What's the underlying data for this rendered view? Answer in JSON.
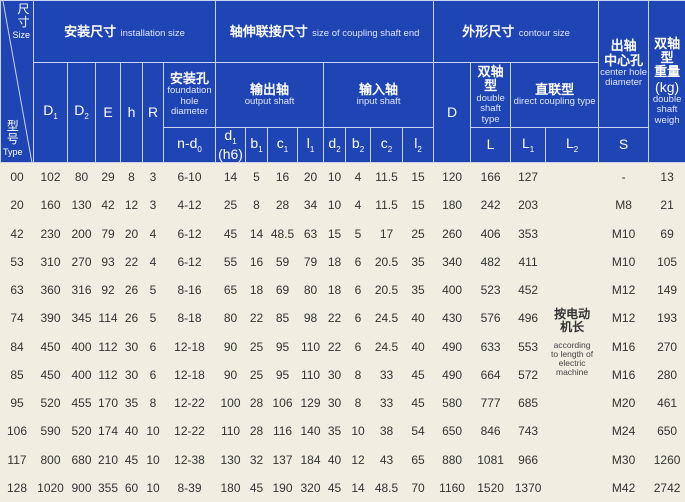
{
  "colors": {
    "header_bg": "#1f45b5",
    "body_bg": "#efeee0",
    "text": "#333333"
  },
  "corner": {
    "size_cn": "尺寸",
    "size_en": "Size",
    "type_cn": "型号",
    "type_en": "Type"
  },
  "groups": {
    "installation": {
      "cn": "安装尺寸",
      "en": "installation size"
    },
    "coupling": {
      "cn": "轴伸联接尺寸",
      "en": "size of coupling shaft end"
    },
    "contour": {
      "cn": "外形尺寸",
      "en": "contour size"
    },
    "center_hole": {
      "cn1": "出轴",
      "cn2": "中心孔",
      "en": "center hole diameter"
    },
    "weight": {
      "cn1": "双轴",
      "cn2": "型",
      "cn3": "重量",
      "unit": "(kg)",
      "en": "double shaft weigh"
    },
    "foundation_hole": {
      "cn": "安装孔",
      "en": "foundation hole diameter"
    },
    "output_shaft": {
      "cn": "输出轴",
      "en": "output shaft"
    },
    "input_shaft": {
      "cn": "输入轴",
      "en": "input shaft"
    },
    "double_shaft": {
      "cn1": "双轴",
      "cn2": "型",
      "en": "double shaft type"
    },
    "direct_coupling": {
      "cn": "直联型",
      "en": "direct coupling type"
    }
  },
  "columns": {
    "D1": {
      "m": "D",
      "s": "1"
    },
    "D2": {
      "m": "D",
      "s": "2"
    },
    "E": {
      "m": "E",
      "s": ""
    },
    "h": {
      "m": "h",
      "s": ""
    },
    "R": {
      "m": "R",
      "s": ""
    },
    "nd0": {
      "m": "n-d",
      "s": "0"
    },
    "d1": {
      "m": "d",
      "s": "1",
      "extra": "(h6)"
    },
    "b1": {
      "m": "b",
      "s": "1"
    },
    "c1": {
      "m": "c",
      "s": "1"
    },
    "l1": {
      "m": "l",
      "s": "1"
    },
    "d2": {
      "m": "d",
      "s": "2"
    },
    "b2": {
      "m": "b",
      "s": "2"
    },
    "c2": {
      "m": "c",
      "s": "2"
    },
    "l2": {
      "m": "l",
      "s": "2"
    },
    "D": {
      "m": "D",
      "s": ""
    },
    "L": {
      "m": "L",
      "s": ""
    },
    "L1": {
      "m": "L",
      "s": "1"
    },
    "L2": {
      "m": "L",
      "s": "2"
    },
    "S": {
      "m": "S",
      "s": ""
    }
  },
  "l2_note": {
    "cn": "按电动机长",
    "en": "according to length of electric machine"
  },
  "rows": [
    [
      "00",
      "102",
      "80",
      "29",
      "8",
      "3",
      "6-10",
      "14",
      "5",
      "16",
      "20",
      "10",
      "4",
      "11.5",
      "15",
      "120",
      "166",
      "127",
      "-",
      "13"
    ],
    [
      "20",
      "160",
      "130",
      "42",
      "12",
      "3",
      "4-12",
      "25",
      "8",
      "28",
      "34",
      "10",
      "4",
      "11.5",
      "15",
      "180",
      "242",
      "203",
      "M8",
      "21"
    ],
    [
      "42",
      "230",
      "200",
      "79",
      "20",
      "4",
      "6-12",
      "45",
      "14",
      "48.5",
      "63",
      "15",
      "5",
      "17",
      "25",
      "260",
      "406",
      "353",
      "M10",
      "69"
    ],
    [
      "53",
      "310",
      "270",
      "93",
      "22",
      "4",
      "6-12",
      "55",
      "16",
      "59",
      "79",
      "18",
      "6",
      "20.5",
      "35",
      "340",
      "482",
      "411",
      "M10",
      "105"
    ],
    [
      "63",
      "360",
      "316",
      "92",
      "26",
      "5",
      "8-16",
      "65",
      "18",
      "69",
      "80",
      "18",
      "6",
      "20.5",
      "35",
      "400",
      "523",
      "452",
      "M12",
      "149"
    ],
    [
      "74",
      "390",
      "345",
      "114",
      "26",
      "5",
      "8-18",
      "80",
      "22",
      "85",
      "98",
      "22",
      "6",
      "24.5",
      "40",
      "430",
      "576",
      "496",
      "M12",
      "193"
    ],
    [
      "84",
      "450",
      "400",
      "112",
      "30",
      "6",
      "12-18",
      "90",
      "25",
      "95",
      "110",
      "22",
      "6",
      "24.5",
      "40",
      "490",
      "633",
      "553",
      "M16",
      "270"
    ],
    [
      "85",
      "450",
      "400",
      "112",
      "30",
      "6",
      "12-18",
      "90",
      "25",
      "95",
      "110",
      "30",
      "8",
      "33",
      "45",
      "490",
      "664",
      "572",
      "M16",
      "280"
    ],
    [
      "95",
      "520",
      "455",
      "170",
      "35",
      "8",
      "12-22",
      "100",
      "28",
      "106",
      "129",
      "30",
      "8",
      "33",
      "45",
      "580",
      "777",
      "685",
      "M20",
      "461"
    ],
    [
      "106",
      "590",
      "520",
      "174",
      "40",
      "10",
      "12-22",
      "110",
      "28",
      "116",
      "140",
      "35",
      "10",
      "38",
      "54",
      "650",
      "846",
      "743",
      "M24",
      "650"
    ],
    [
      "117",
      "800",
      "680",
      "210",
      "45",
      "10",
      "12-38",
      "130",
      "32",
      "137",
      "184",
      "40",
      "12",
      "43",
      "65",
      "880",
      "1081",
      "966",
      "M30",
      "1260"
    ],
    [
      "128",
      "1020",
      "900",
      "355",
      "60",
      "10",
      "8-39",
      "180",
      "45",
      "190",
      "320",
      "45",
      "14",
      "48.5",
      "70",
      "1160",
      "1520",
      "1370",
      "M42",
      "2742"
    ]
  ]
}
